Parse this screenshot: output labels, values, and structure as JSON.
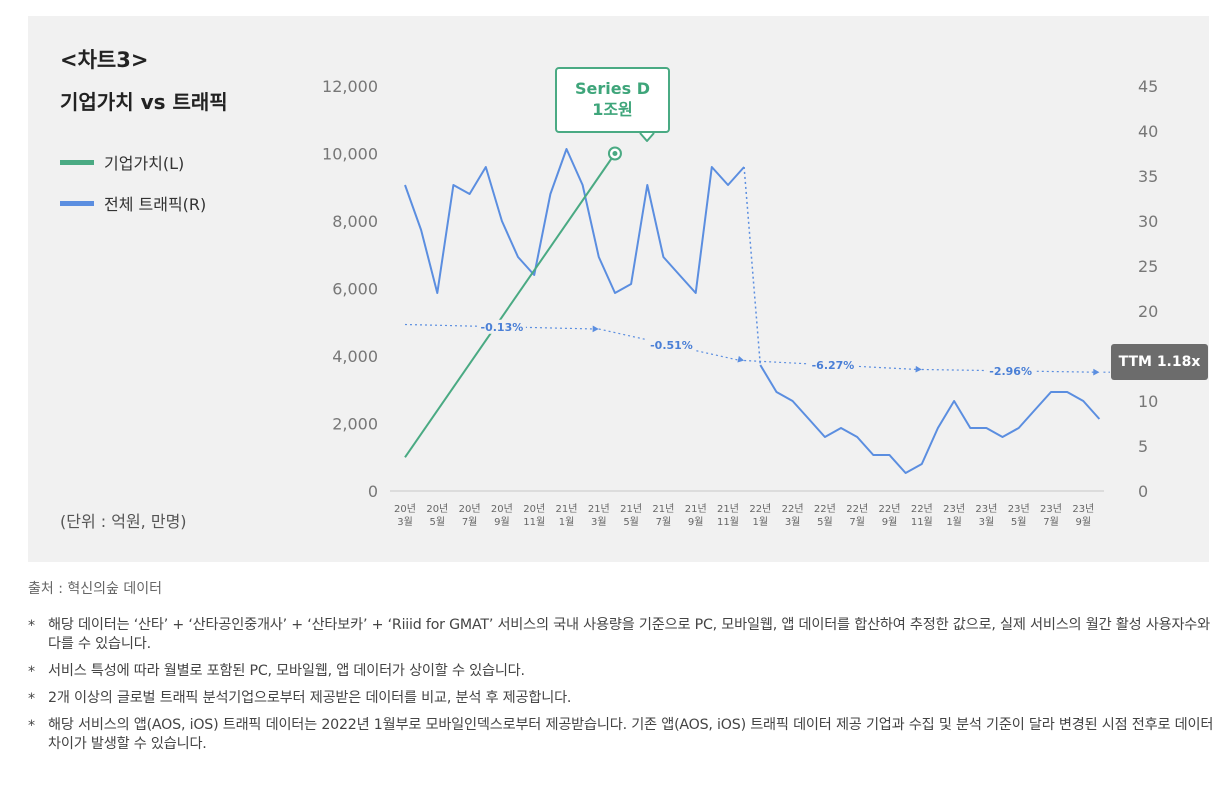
{
  "chart_title_line1": "<차트3>",
  "chart_title_line2": "기업가치 vs 트래픽",
  "unit_label": "(단위 : 억원, 만명)",
  "source": "출처 : 혁신의숲 데이터",
  "notes": [
    "해당 데이터는 ‘산타’ + ‘산타공인중개사’ + ‘산타보카’ + ‘Riiid for GMAT’ 서비스의 국내 사용량을 기준으로 PC, 모바일웹, 앱 데이터를 합산하여 추정한 값으로, 실제 서비스의 월간 활성 사용자수와 다를 수 있습니다.",
    "서비스 특성에 따라 월별로 포함된 PC, 모바일웹, 앱 데이터가 상이할 수 있습니다.",
    "2개 이상의 글로벌 트래픽 분석기업으로부터 제공받은 데이터를 비교, 분석 후 제공합니다.",
    "해당 서비스의 앱(AOS, iOS) 트래픽 데이터는 2022년 1월부로 모바일인덱스로부터 제공받습니다. 기존 앱(AOS, iOS) 트래픽 데이터 제공 기업과 수집 및 분석 기준이 달라 변경된 시점 전후로 데이터 차이가 발생할 수 있습니다."
  ],
  "callout_line1": "Series D",
  "callout_line2": "1조원",
  "ttm_label": "TTM 1.18x",
  "chart_data": {
    "type": "line",
    "title": "<차트3> 기업가치 vs 트래픽",
    "tick_labels_x": [
      [
        "20년",
        "3월"
      ],
      [
        "20년",
        "5월"
      ],
      [
        "20년",
        "7월"
      ],
      [
        "20년",
        "9월"
      ],
      [
        "20년",
        "11월"
      ],
      [
        "21년",
        "1월"
      ],
      [
        "21년",
        "3월"
      ],
      [
        "21년",
        "5월"
      ],
      [
        "21년",
        "7월"
      ],
      [
        "21년",
        "9월"
      ],
      [
        "21년",
        "11월"
      ],
      [
        "22년",
        "1월"
      ],
      [
        "22년",
        "3월"
      ],
      [
        "22년",
        "5월"
      ],
      [
        "22년",
        "7월"
      ],
      [
        "22년",
        "9월"
      ],
      [
        "22년",
        "11월"
      ],
      [
        "23년",
        "1월"
      ],
      [
        "23년",
        "3월"
      ],
      [
        "23년",
        "5월"
      ],
      [
        "23년",
        "7월"
      ],
      [
        "23년",
        "9월"
      ]
    ],
    "y_left": {
      "ticks": [
        "0",
        "2,000",
        "4,000",
        "6,000",
        "8,000",
        "10,000",
        "12,000"
      ],
      "range": [
        0,
        12000
      ]
    },
    "y_right": {
      "ticks": [
        "0",
        "5",
        "10",
        "15",
        "20",
        "25",
        "30",
        "35",
        "40",
        "45"
      ],
      "range": [
        0,
        45
      ]
    },
    "series": [
      {
        "name": "기업가치(L)",
        "axis": "left",
        "color": "#4aaa83",
        "points": [
          {
            "month": "2020-03",
            "value": 1000
          },
          {
            "month": "2021-04",
            "value": 10000
          }
        ]
      },
      {
        "name": "전체 트래픽(R)",
        "axis": "right",
        "color": "#5b8ee0",
        "months": [
          "2020-03",
          "2020-04",
          "2020-05",
          "2020-06",
          "2020-07",
          "2020-08",
          "2020-09",
          "2020-10",
          "2020-11",
          "2020-12",
          "2021-01",
          "2021-02",
          "2021-03",
          "2021-04",
          "2021-05",
          "2021-06",
          "2021-07",
          "2021-08",
          "2021-09",
          "2021-10",
          "2021-11",
          "2021-12",
          "2022-01",
          "2022-02",
          "2022-03",
          "2022-04",
          "2022-05",
          "2022-06",
          "2022-07",
          "2022-08",
          "2022-09",
          "2022-10",
          "2022-11",
          "2022-12",
          "2023-01",
          "2023-02",
          "2023-03",
          "2023-04",
          "2023-05",
          "2023-06",
          "2023-07",
          "2023-08",
          "2023-09",
          "2023-10"
        ],
        "values": [
          34,
          29,
          22,
          34,
          33,
          36,
          30,
          26,
          24,
          33,
          38,
          34,
          26,
          22,
          23,
          34,
          26,
          24,
          22,
          36,
          34,
          36,
          14,
          11,
          10,
          8,
          6,
          7,
          6,
          4,
          4,
          2,
          3,
          7,
          10,
          7,
          7,
          6,
          7,
          9,
          11,
          11,
          10,
          8
        ]
      }
    ],
    "annotations": [
      {
        "text": "-0.13%",
        "from": "2020-03",
        "to": "2021-03",
        "value_right": 18.5
      },
      {
        "text": "-0.51%",
        "from": "2021-03",
        "to": "2021-12",
        "value_right": 18
      },
      {
        "text": "-6.27%",
        "from": "2021-12",
        "to": "2022-11",
        "value_right": 14.5
      },
      {
        "text": "-2.96%",
        "from": "2022-11",
        "to": "2023-10",
        "value_right": 13.5
      }
    ],
    "grid": false,
    "legend_position": "left"
  }
}
